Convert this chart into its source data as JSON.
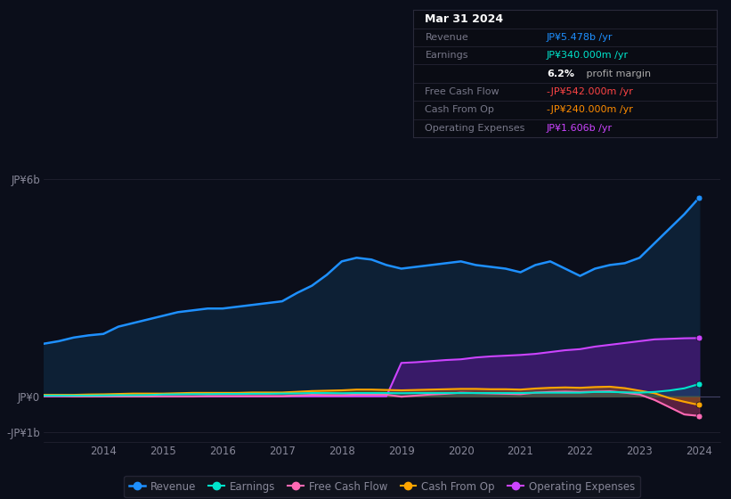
{
  "bg_color": "#0b0e1a",
  "plot_bg_color": "#0b0e1a",
  "years": [
    2013.0,
    2013.25,
    2013.5,
    2013.75,
    2014.0,
    2014.25,
    2014.5,
    2014.75,
    2015.0,
    2015.25,
    2015.5,
    2015.75,
    2016.0,
    2016.25,
    2016.5,
    2016.75,
    2017.0,
    2017.25,
    2017.5,
    2017.75,
    2018.0,
    2018.25,
    2018.5,
    2018.75,
    2019.0,
    2019.25,
    2019.5,
    2019.75,
    2020.0,
    2020.25,
    2020.5,
    2020.75,
    2021.0,
    2021.25,
    2021.5,
    2021.75,
    2022.0,
    2022.25,
    2022.5,
    2022.75,
    2023.0,
    2023.25,
    2023.5,
    2023.75,
    2024.0
  ],
  "revenue": [
    1.45,
    1.52,
    1.62,
    1.68,
    1.72,
    1.92,
    2.02,
    2.12,
    2.22,
    2.32,
    2.37,
    2.42,
    2.42,
    2.47,
    2.52,
    2.57,
    2.62,
    2.85,
    3.05,
    3.35,
    3.72,
    3.82,
    3.77,
    3.62,
    3.52,
    3.57,
    3.62,
    3.67,
    3.72,
    3.62,
    3.57,
    3.52,
    3.42,
    3.62,
    3.72,
    3.52,
    3.32,
    3.52,
    3.62,
    3.67,
    3.82,
    4.22,
    4.62,
    5.02,
    5.478
  ],
  "earnings": [
    0.02,
    0.02,
    0.02,
    0.02,
    0.025,
    0.03,
    0.03,
    0.035,
    0.05,
    0.055,
    0.06,
    0.06,
    0.065,
    0.065,
    0.07,
    0.07,
    0.075,
    0.08,
    0.09,
    0.09,
    0.085,
    0.09,
    0.09,
    0.09,
    0.085,
    0.09,
    0.09,
    0.09,
    0.09,
    0.09,
    0.09,
    0.09,
    0.09,
    0.1,
    0.1,
    0.1,
    0.1,
    0.12,
    0.12,
    0.11,
    0.1,
    0.12,
    0.16,
    0.22,
    0.34
  ],
  "free_cash_flow": [
    0.005,
    0.005,
    -0.005,
    -0.005,
    -0.005,
    -0.005,
    -0.005,
    -0.005,
    -0.005,
    -0.005,
    -0.005,
    0.005,
    0.005,
    0.005,
    0.005,
    0.005,
    0.005,
    0.025,
    0.04,
    0.035,
    0.035,
    0.045,
    0.045,
    0.045,
    -0.01,
    0.02,
    0.05,
    0.07,
    0.1,
    0.09,
    0.08,
    0.07,
    0.06,
    0.1,
    0.12,
    0.13,
    0.12,
    0.13,
    0.14,
    0.1,
    0.05,
    -0.1,
    -0.3,
    -0.5,
    -0.542
  ],
  "cash_from_op": [
    0.04,
    0.04,
    0.04,
    0.05,
    0.055,
    0.065,
    0.075,
    0.075,
    0.075,
    0.085,
    0.095,
    0.095,
    0.095,
    0.095,
    0.105,
    0.105,
    0.105,
    0.125,
    0.145,
    0.155,
    0.165,
    0.185,
    0.185,
    0.175,
    0.165,
    0.175,
    0.185,
    0.195,
    0.205,
    0.205,
    0.195,
    0.195,
    0.185,
    0.215,
    0.235,
    0.245,
    0.235,
    0.255,
    0.265,
    0.225,
    0.155,
    0.085,
    -0.05,
    -0.15,
    -0.24
  ],
  "operating_expenses": [
    0.0,
    0.0,
    0.0,
    0.0,
    0.0,
    0.0,
    0.0,
    0.0,
    0.0,
    0.0,
    0.0,
    0.0,
    0.0,
    0.0,
    0.0,
    0.0,
    0.0,
    0.0,
    0.0,
    0.0,
    0.0,
    0.0,
    0.0,
    0.0,
    0.92,
    0.94,
    0.97,
    1.0,
    1.02,
    1.07,
    1.1,
    1.12,
    1.14,
    1.17,
    1.22,
    1.27,
    1.3,
    1.37,
    1.42,
    1.47,
    1.52,
    1.57,
    1.585,
    1.6,
    1.606
  ],
  "ylim": [
    -1.25,
    6.8
  ],
  "xlim": [
    2013.0,
    2024.35
  ],
  "yticks": [
    -1.0,
    0.0,
    6.0
  ],
  "ytick_labels": [
    "-JP¥1b",
    "JP¥0",
    "JP¥6b"
  ],
  "xtick_years": [
    2014,
    2015,
    2016,
    2017,
    2018,
    2019,
    2020,
    2021,
    2022,
    2023,
    2024
  ],
  "grid_color": "#252535",
  "text_color": "#888899",
  "revenue_line_color": "#1E90FF",
  "revenue_fill_color": "#0d2035",
  "earnings_line_color": "#00e5cc",
  "fcf_line_color": "#ff69b4",
  "cfo_line_color": "#ffa500",
  "opex_line_color": "#cc44ff",
  "opex_fill_color": "#3d1a6e",
  "info_box_bg": "#0a0c14",
  "info_box_border": "#2a2a3a",
  "legend_bg": "#12151f",
  "legend_border": "#2a2a3a"
}
